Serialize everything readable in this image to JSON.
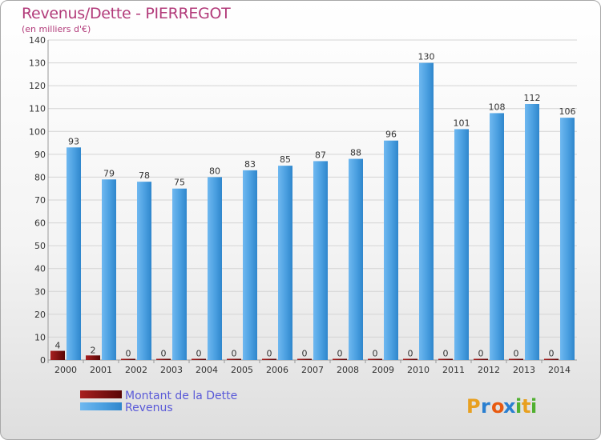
{
  "chart_data": {
    "type": "bar",
    "title": "Revenus/Dette - PIERREGOT",
    "subtitle": "(en milliers d'€)",
    "categories": [
      "2000",
      "2001",
      "2002",
      "2003",
      "2004",
      "2005",
      "2006",
      "2007",
      "2008",
      "2009",
      "2010",
      "2011",
      "2012",
      "2013",
      "2014"
    ],
    "series": [
      {
        "name": "Montant de la Dette",
        "color": "#7a0c0c",
        "values": [
          4,
          2,
          0,
          0,
          0,
          0,
          0,
          0,
          0,
          0,
          0,
          0,
          0,
          0,
          0
        ]
      },
      {
        "name": "Revenus",
        "color": "#4a9fe0",
        "values": [
          93,
          79,
          78,
          75,
          80,
          83,
          85,
          87,
          88,
          96,
          130,
          101,
          108,
          112,
          106
        ]
      }
    ],
    "ylim": [
      0,
      140
    ],
    "yticks": [
      0,
      10,
      20,
      30,
      40,
      50,
      60,
      70,
      80,
      90,
      100,
      110,
      120,
      130,
      140
    ],
    "grid": true,
    "legend": "bottom-left"
  },
  "logo": {
    "text": "Proxiti",
    "letters": [
      "P",
      "r",
      "o",
      "x",
      "i",
      "t",
      "i"
    ],
    "colors": [
      "#e8a020",
      "#2a7fd0",
      "#e85a10",
      "#2a7fd0",
      "#50b030",
      "#e8a020",
      "#50b030"
    ]
  }
}
